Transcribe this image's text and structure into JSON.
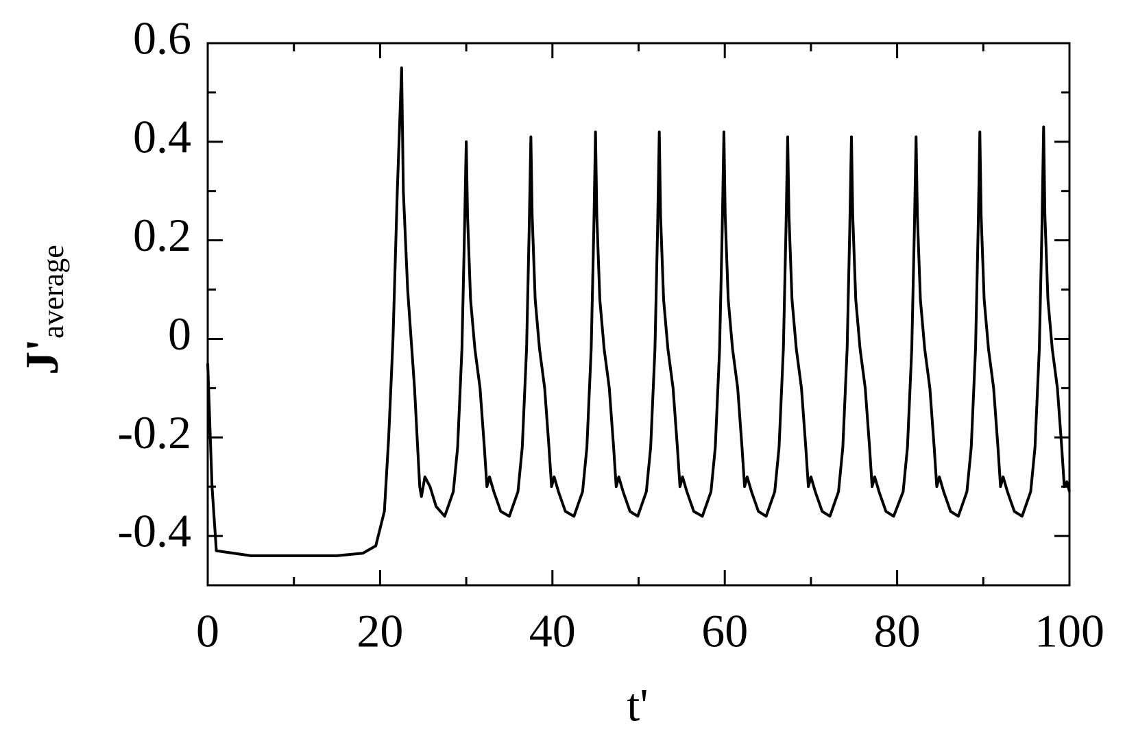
{
  "chart_data": {
    "type": "line",
    "xlabel": "t'",
    "ylabel": "J'",
    "ylabel_subscript": "average",
    "color": "#000000",
    "xlim": [
      0,
      100
    ],
    "xticks": [
      0,
      20,
      40,
      60,
      80,
      100
    ],
    "xminor": [
      10,
      30,
      50,
      70,
      90
    ],
    "ylim": [
      -0.5,
      0.6
    ],
    "yticks": [
      -0.4,
      -0.2,
      0,
      0.2,
      0.4,
      0.6
    ],
    "yminor": [
      -0.3,
      -0.1,
      0.1,
      0.3,
      0.5
    ],
    "x": [
      0,
      0.3,
      0.5,
      1,
      5,
      15,
      18,
      19.5,
      20.5,
      21,
      21.5,
      22,
      22.5,
      22.7,
      23.2,
      24,
      24.6,
      24.8,
      25.2,
      25.8,
      26.5,
      27.5,
      28.5,
      29,
      29.5,
      29.8,
      30,
      30.15,
      30.5,
      31,
      31.6,
      32.1,
      32.4,
      32.7,
      33.2,
      34,
      35,
      36,
      36.5,
      37,
      37.3,
      37.5,
      37.65,
      38,
      38.5,
      39.1,
      39.6,
      39.9,
      40.2,
      40.7,
      41.5,
      42.5,
      43.5,
      44,
      44.5,
      44.8,
      45,
      45.15,
      45.5,
      46,
      46.6,
      47.1,
      47.4,
      47.7,
      48.2,
      49,
      49.9,
      50.9,
      51.4,
      51.9,
      52.2,
      52.4,
      52.55,
      52.9,
      53.4,
      54,
      54.5,
      54.8,
      55.1,
      55.6,
      56.4,
      57.4,
      58.4,
      58.9,
      59.4,
      59.7,
      59.9,
      60.05,
      60.4,
      60.9,
      61.5,
      62,
      62.3,
      62.6,
      63.1,
      63.9,
      64.8,
      65.8,
      66.3,
      66.8,
      67.1,
      67.3,
      67.45,
      67.8,
      68.3,
      68.9,
      69.4,
      69.7,
      70,
      70.5,
      71.3,
      72.2,
      73.2,
      73.7,
      74.2,
      74.5,
      74.7,
      74.85,
      75.2,
      75.7,
      76.3,
      76.8,
      77.1,
      77.4,
      77.9,
      78.7,
      79.6,
      80.7,
      81.2,
      81.7,
      82,
      82.2,
      82.35,
      82.7,
      83.2,
      83.8,
      84.3,
      84.6,
      84.9,
      85.4,
      86.2,
      87.1,
      88.1,
      88.6,
      89.1,
      89.4,
      89.6,
      89.75,
      90.1,
      90.6,
      91.2,
      91.7,
      92,
      92.3,
      92.8,
      93.6,
      94.5,
      95.5,
      96,
      96.5,
      96.8,
      97,
      97.15,
      97.5,
      98,
      98.6,
      99.1,
      99.4,
      99.7,
      100
    ],
    "values": [
      -0.05,
      -0.2,
      -0.3,
      -0.43,
      -0.44,
      -0.44,
      -0.435,
      -0.42,
      -0.35,
      -0.2,
      0,
      0.3,
      0.55,
      0.3,
      0.1,
      -0.1,
      -0.3,
      -0.32,
      -0.28,
      -0.3,
      -0.34,
      -0.36,
      -0.31,
      -0.22,
      -0.02,
      0.22,
      0.4,
      0.25,
      0.08,
      -0.02,
      -0.1,
      -0.22,
      -0.3,
      -0.28,
      -0.31,
      -0.35,
      -0.36,
      -0.31,
      -0.22,
      -0.02,
      0.22,
      0.41,
      0.25,
      0.08,
      -0.02,
      -0.1,
      -0.22,
      -0.3,
      -0.28,
      -0.31,
      -0.35,
      -0.36,
      -0.31,
      -0.22,
      -0.02,
      0.22,
      0.42,
      0.25,
      0.08,
      -0.02,
      -0.1,
      -0.22,
      -0.3,
      -0.28,
      -0.31,
      -0.35,
      -0.36,
      -0.31,
      -0.22,
      -0.02,
      0.22,
      0.42,
      0.25,
      0.08,
      -0.02,
      -0.1,
      -0.22,
      -0.3,
      -0.28,
      -0.31,
      -0.35,
      -0.36,
      -0.31,
      -0.22,
      -0.02,
      0.22,
      0.42,
      0.25,
      0.08,
      -0.02,
      -0.1,
      -0.22,
      -0.3,
      -0.28,
      -0.31,
      -0.35,
      -0.36,
      -0.31,
      -0.22,
      -0.02,
      0.22,
      0.41,
      0.25,
      0.08,
      -0.02,
      -0.1,
      -0.22,
      -0.3,
      -0.28,
      -0.31,
      -0.35,
      -0.36,
      -0.31,
      -0.22,
      -0.02,
      0.22,
      0.41,
      0.25,
      0.08,
      -0.02,
      -0.1,
      -0.22,
      -0.3,
      -0.28,
      -0.31,
      -0.35,
      -0.36,
      -0.31,
      -0.22,
      -0.02,
      0.22,
      0.41,
      0.25,
      0.08,
      -0.02,
      -0.1,
      -0.22,
      -0.3,
      -0.28,
      -0.31,
      -0.35,
      -0.36,
      -0.31,
      -0.22,
      -0.02,
      0.22,
      0.42,
      0.25,
      0.08,
      -0.02,
      -0.1,
      -0.22,
      -0.3,
      -0.28,
      -0.31,
      -0.35,
      -0.36,
      -0.31,
      -0.22,
      -0.02,
      0.22,
      0.43,
      0.25,
      0.08,
      -0.02,
      -0.1,
      -0.22,
      -0.3,
      -0.29,
      -0.31
    ]
  }
}
